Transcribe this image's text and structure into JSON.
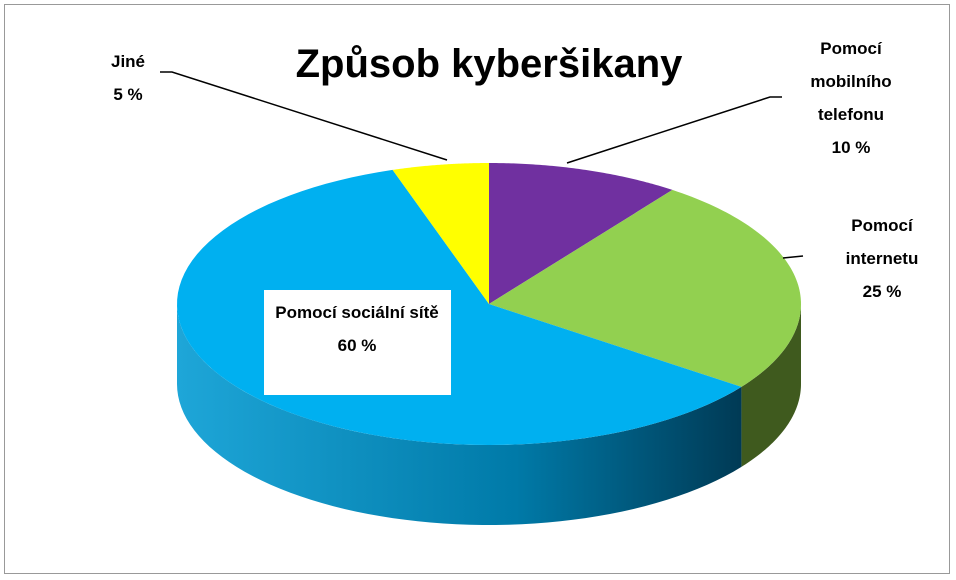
{
  "chart_data": {
    "type": "pie",
    "title": "Způsob kyberšikany",
    "categories": [
      "Pomocí mobilního telefonu",
      "Pomocí internetu",
      "Pomocí sociální sítě",
      "Jiné"
    ],
    "values": [
      10,
      25,
      60,
      5
    ],
    "value_labels": [
      "10 %",
      "25 %",
      "60 %",
      "5 %"
    ],
    "colors": [
      "#7030a0",
      "#92d050",
      "#00b0f0",
      "#ffff00"
    ]
  }
}
